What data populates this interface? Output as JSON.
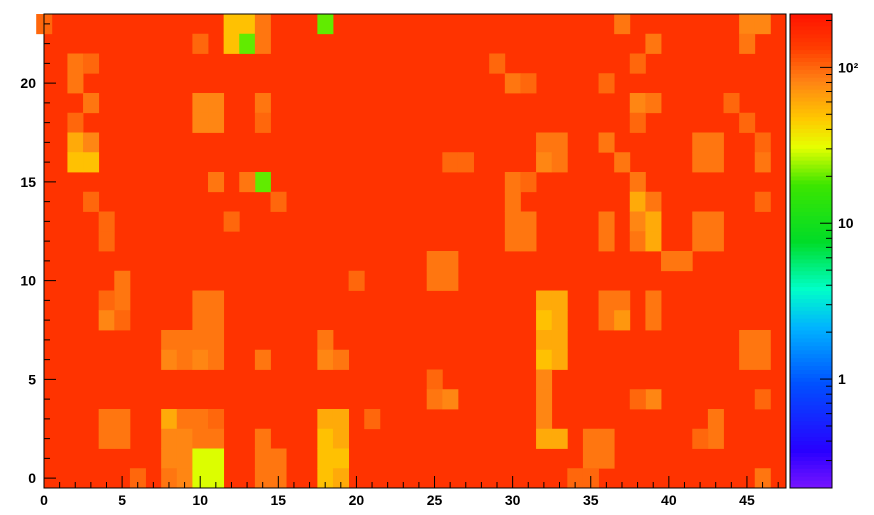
{
  "chart_data": {
    "type": "heatmap",
    "title": "",
    "xlabel": "",
    "ylabel": "",
    "xlim": [
      0,
      47.5
    ],
    "ylim": [
      -0.5,
      23.5
    ],
    "x_ticks": [
      0,
      5,
      10,
      15,
      20,
      25,
      30,
      35,
      40,
      45
    ],
    "y_ticks": [
      0,
      5,
      10,
      15,
      20
    ],
    "z_scale": "log",
    "zlim": [
      0.2,
      220
    ],
    "colorbar_ticks": [
      {
        "value": 1,
        "label": "1"
      },
      {
        "value": 10,
        "label": "10"
      },
      {
        "value": 100,
        "label": "10²"
      }
    ],
    "grid": false,
    "background_value": 150,
    "cells": [
      {
        "x": 12,
        "y": 23,
        "v": 50
      },
      {
        "x": 13,
        "y": 23,
        "v": 50
      },
      {
        "x": 12,
        "y": 22,
        "v": 50
      },
      {
        "x": 13,
        "y": 22,
        "v": 20
      },
      {
        "x": 18,
        "y": 23,
        "v": 20
      },
      {
        "x": 14,
        "y": 23,
        "v": 90
      },
      {
        "x": 14,
        "y": 22,
        "v": 90
      },
      {
        "x": 0,
        "y": 23,
        "v": 100
      },
      {
        "x": 10,
        "y": 22,
        "v": 100
      },
      {
        "x": 37,
        "y": 23,
        "v": 90
      },
      {
        "x": 39,
        "y": 22,
        "v": 90
      },
      {
        "x": 45,
        "y": 23,
        "v": 80
      },
      {
        "x": 46,
        "y": 23,
        "v": 80
      },
      {
        "x": 45,
        "y": 22,
        "v": 90
      },
      {
        "x": 2,
        "y": 21,
        "v": 90
      },
      {
        "x": 3,
        "y": 21,
        "v": 100
      },
      {
        "x": 2,
        "y": 20,
        "v": 90
      },
      {
        "x": 3,
        "y": 19,
        "v": 90
      },
      {
        "x": 2,
        "y": 18,
        "v": 100
      },
      {
        "x": 29,
        "y": 21,
        "v": 100
      },
      {
        "x": 30,
        "y": 20,
        "v": 90
      },
      {
        "x": 31,
        "y": 20,
        "v": 100
      },
      {
        "x": 36,
        "y": 20,
        "v": 100
      },
      {
        "x": 38,
        "y": 21,
        "v": 100
      },
      {
        "x": 10,
        "y": 19,
        "v": 80
      },
      {
        "x": 11,
        "y": 19,
        "v": 80
      },
      {
        "x": 10,
        "y": 18,
        "v": 80
      },
      {
        "x": 11,
        "y": 18,
        "v": 80
      },
      {
        "x": 14,
        "y": 19,
        "v": 90
      },
      {
        "x": 14,
        "y": 18,
        "v": 100
      },
      {
        "x": 38,
        "y": 19,
        "v": 80
      },
      {
        "x": 39,
        "y": 19,
        "v": 90
      },
      {
        "x": 38,
        "y": 18,
        "v": 100
      },
      {
        "x": 44,
        "y": 19,
        "v": 100
      },
      {
        "x": 45,
        "y": 18,
        "v": 100
      },
      {
        "x": 2,
        "y": 17,
        "v": 60
      },
      {
        "x": 3,
        "y": 17,
        "v": 80
      },
      {
        "x": 2,
        "y": 16,
        "v": 50
      },
      {
        "x": 3,
        "y": 16,
        "v": 50
      },
      {
        "x": 26,
        "y": 16,
        "v": 100
      },
      {
        "x": 27,
        "y": 16,
        "v": 100
      },
      {
        "x": 32,
        "y": 17,
        "v": 90
      },
      {
        "x": 33,
        "y": 17,
        "v": 90
      },
      {
        "x": 32,
        "y": 16,
        "v": 80
      },
      {
        "x": 33,
        "y": 16,
        "v": 90
      },
      {
        "x": 36,
        "y": 17,
        "v": 90
      },
      {
        "x": 37,
        "y": 16,
        "v": 90
      },
      {
        "x": 42,
        "y": 17,
        "v": 90
      },
      {
        "x": 43,
        "y": 17,
        "v": 90
      },
      {
        "x": 42,
        "y": 16,
        "v": 90
      },
      {
        "x": 43,
        "y": 16,
        "v": 90
      },
      {
        "x": 46,
        "y": 17,
        "v": 100
      },
      {
        "x": 46,
        "y": 16,
        "v": 90
      },
      {
        "x": 14,
        "y": 15,
        "v": 20
      },
      {
        "x": 13,
        "y": 15,
        "v": 90
      },
      {
        "x": 11,
        "y": 15,
        "v": 90
      },
      {
        "x": 3,
        "y": 14,
        "v": 100
      },
      {
        "x": 15,
        "y": 14,
        "v": 100
      },
      {
        "x": 30,
        "y": 15,
        "v": 90
      },
      {
        "x": 31,
        "y": 15,
        "v": 100
      },
      {
        "x": 30,
        "y": 14,
        "v": 90
      },
      {
        "x": 30,
        "y": 13,
        "v": 90
      },
      {
        "x": 31,
        "y": 13,
        "v": 90
      },
      {
        "x": 30,
        "y": 12,
        "v": 90
      },
      {
        "x": 31,
        "y": 12,
        "v": 90
      },
      {
        "x": 38,
        "y": 15,
        "v": 90
      },
      {
        "x": 38,
        "y": 14,
        "v": 60
      },
      {
        "x": 39,
        "y": 14,
        "v": 90
      },
      {
        "x": 38,
        "y": 13,
        "v": 80
      },
      {
        "x": 39,
        "y": 13,
        "v": 60
      },
      {
        "x": 38,
        "y": 12,
        "v": 90
      },
      {
        "x": 39,
        "y": 12,
        "v": 60
      },
      {
        "x": 36,
        "y": 13,
        "v": 90
      },
      {
        "x": 36,
        "y": 12,
        "v": 90
      },
      {
        "x": 42,
        "y": 13,
        "v": 90
      },
      {
        "x": 43,
        "y": 13,
        "v": 90
      },
      {
        "x": 42,
        "y": 12,
        "v": 90
      },
      {
        "x": 43,
        "y": 12,
        "v": 90
      },
      {
        "x": 46,
        "y": 14,
        "v": 100
      },
      {
        "x": 4,
        "y": 13,
        "v": 100
      },
      {
        "x": 4,
        "y": 12,
        "v": 100
      },
      {
        "x": 12,
        "y": 13,
        "v": 100
      },
      {
        "x": 25,
        "y": 11,
        "v": 90
      },
      {
        "x": 26,
        "y": 11,
        "v": 90
      },
      {
        "x": 25,
        "y": 10,
        "v": 90
      },
      {
        "x": 26,
        "y": 10,
        "v": 90
      },
      {
        "x": 5,
        "y": 10,
        "v": 90
      },
      {
        "x": 5,
        "y": 9,
        "v": 90
      },
      {
        "x": 4,
        "y": 9,
        "v": 100
      },
      {
        "x": 4,
        "y": 8,
        "v": 80
      },
      {
        "x": 5,
        "y": 8,
        "v": 100
      },
      {
        "x": 10,
        "y": 9,
        "v": 90
      },
      {
        "x": 11,
        "y": 9,
        "v": 90
      },
      {
        "x": 10,
        "y": 8,
        "v": 90
      },
      {
        "x": 11,
        "y": 8,
        "v": 90
      },
      {
        "x": 10,
        "y": 7,
        "v": 90
      },
      {
        "x": 11,
        "y": 7,
        "v": 90
      },
      {
        "x": 20,
        "y": 10,
        "v": 100
      },
      {
        "x": 40,
        "y": 11,
        "v": 90
      },
      {
        "x": 41,
        "y": 11,
        "v": 90
      },
      {
        "x": 32,
        "y": 9,
        "v": 60
      },
      {
        "x": 33,
        "y": 9,
        "v": 60
      },
      {
        "x": 32,
        "y": 8,
        "v": 50
      },
      {
        "x": 33,
        "y": 8,
        "v": 60
      },
      {
        "x": 32,
        "y": 7,
        "v": 60
      },
      {
        "x": 33,
        "y": 7,
        "v": 60
      },
      {
        "x": 32,
        "y": 6,
        "v": 50
      },
      {
        "x": 33,
        "y": 6,
        "v": 60
      },
      {
        "x": 32,
        "y": 5,
        "v": 80
      },
      {
        "x": 32,
        "y": 4,
        "v": 80
      },
      {
        "x": 32,
        "y": 3,
        "v": 80
      },
      {
        "x": 36,
        "y": 9,
        "v": 90
      },
      {
        "x": 37,
        "y": 9,
        "v": 90
      },
      {
        "x": 36,
        "y": 8,
        "v": 90
      },
      {
        "x": 37,
        "y": 8,
        "v": 70
      },
      {
        "x": 39,
        "y": 9,
        "v": 90
      },
      {
        "x": 39,
        "y": 8,
        "v": 90
      },
      {
        "x": 8,
        "y": 7,
        "v": 90
      },
      {
        "x": 9,
        "y": 7,
        "v": 90
      },
      {
        "x": 8,
        "y": 6,
        "v": 80
      },
      {
        "x": 9,
        "y": 6,
        "v": 90
      },
      {
        "x": 10,
        "y": 6,
        "v": 80
      },
      {
        "x": 11,
        "y": 6,
        "v": 90
      },
      {
        "x": 14,
        "y": 6,
        "v": 90
      },
      {
        "x": 18,
        "y": 7,
        "v": 90
      },
      {
        "x": 18,
        "y": 6,
        "v": 80
      },
      {
        "x": 19,
        "y": 6,
        "v": 90
      },
      {
        "x": 45,
        "y": 7,
        "v": 90
      },
      {
        "x": 46,
        "y": 7,
        "v": 90
      },
      {
        "x": 45,
        "y": 6,
        "v": 90
      },
      {
        "x": 46,
        "y": 6,
        "v": 90
      },
      {
        "x": 25,
        "y": 5,
        "v": 100
      },
      {
        "x": 25,
        "y": 4,
        "v": 90
      },
      {
        "x": 26,
        "y": 4,
        "v": 80
      },
      {
        "x": 39,
        "y": 4,
        "v": 80
      },
      {
        "x": 38,
        "y": 4,
        "v": 100
      },
      {
        "x": 46,
        "y": 4,
        "v": 100
      },
      {
        "x": 4,
        "y": 3,
        "v": 90
      },
      {
        "x": 5,
        "y": 3,
        "v": 90
      },
      {
        "x": 4,
        "y": 2,
        "v": 90
      },
      {
        "x": 5,
        "y": 2,
        "v": 90
      },
      {
        "x": 8,
        "y": 3,
        "v": 60
      },
      {
        "x": 9,
        "y": 3,
        "v": 90
      },
      {
        "x": 10,
        "y": 3,
        "v": 90
      },
      {
        "x": 11,
        "y": 3,
        "v": 100
      },
      {
        "x": 8,
        "y": 2,
        "v": 80
      },
      {
        "x": 9,
        "y": 2,
        "v": 80
      },
      {
        "x": 10,
        "y": 2,
        "v": 90
      },
      {
        "x": 11,
        "y": 2,
        "v": 90
      },
      {
        "x": 8,
        "y": 1,
        "v": 80
      },
      {
        "x": 9,
        "y": 1,
        "v": 80
      },
      {
        "x": 8,
        "y": 0,
        "v": 90
      },
      {
        "x": 9,
        "y": 0,
        "v": 80
      },
      {
        "x": 10,
        "y": 1,
        "v": 30
      },
      {
        "x": 11,
        "y": 1,
        "v": 30
      },
      {
        "x": 10,
        "y": 0,
        "v": 30
      },
      {
        "x": 11,
        "y": 0,
        "v": 30
      },
      {
        "x": 14,
        "y": 2,
        "v": 90
      },
      {
        "x": 14,
        "y": 1,
        "v": 90
      },
      {
        "x": 15,
        "y": 1,
        "v": 90
      },
      {
        "x": 14,
        "y": 0,
        "v": 90
      },
      {
        "x": 15,
        "y": 0,
        "v": 90
      },
      {
        "x": 18,
        "y": 3,
        "v": 60
      },
      {
        "x": 19,
        "y": 3,
        "v": 60
      },
      {
        "x": 18,
        "y": 2,
        "v": 50
      },
      {
        "x": 19,
        "y": 2,
        "v": 60
      },
      {
        "x": 18,
        "y": 1,
        "v": 50
      },
      {
        "x": 19,
        "y": 1,
        "v": 50
      },
      {
        "x": 18,
        "y": 0,
        "v": 50
      },
      {
        "x": 19,
        "y": 0,
        "v": 60
      },
      {
        "x": 21,
        "y": 3,
        "v": 100
      },
      {
        "x": 35,
        "y": 2,
        "v": 90
      },
      {
        "x": 36,
        "y": 2,
        "v": 90
      },
      {
        "x": 35,
        "y": 1,
        "v": 90
      },
      {
        "x": 36,
        "y": 1,
        "v": 90
      },
      {
        "x": 43,
        "y": 3,
        "v": 90
      },
      {
        "x": 43,
        "y": 2,
        "v": 90
      },
      {
        "x": 42,
        "y": 2,
        "v": 100
      },
      {
        "x": 32,
        "y": 2,
        "v": 60
      },
      {
        "x": 33,
        "y": 2,
        "v": 60
      },
      {
        "x": 6,
        "y": 0,
        "v": 100
      },
      {
        "x": 34,
        "y": 0,
        "v": 100
      },
      {
        "x": 35,
        "y": 0,
        "v": 100
      },
      {
        "x": 46,
        "y": 0,
        "v": 90
      }
    ]
  }
}
